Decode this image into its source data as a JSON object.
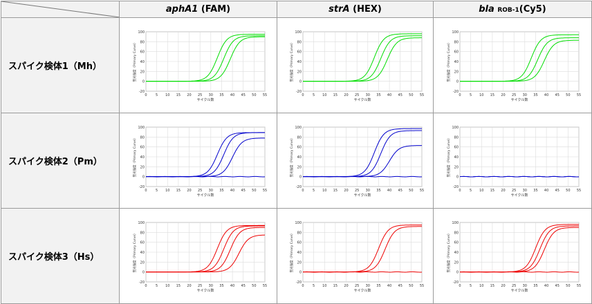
{
  "columns": [
    {
      "gene": "aphA1",
      "dye": " (FAM)",
      "sub": ""
    },
    {
      "gene": "strA",
      "dye": " (HEX)",
      "sub": ""
    },
    {
      "gene": "bla",
      "dye": "(Cy5)",
      "sub": "ROB-1"
    }
  ],
  "rows": [
    {
      "label": "スパイク検体1（Mh）",
      "color": "#00dd00"
    },
    {
      "label": "スパイク検体2（Pm）",
      "color": "#0000cc"
    },
    {
      "label": "スパイク検体3（Hs）",
      "color": "#ee0000"
    }
  ],
  "chart_common": {
    "xlabel": "サイクル数",
    "ylabel": "蛍光強度（Primary Curve）",
    "x_ticks": [
      "0",
      "5",
      "10",
      "15",
      "20",
      "25",
      "30",
      "35",
      "40",
      "45",
      "50",
      "55"
    ],
    "y_ticks": [
      "100",
      "80",
      "60",
      "40",
      "20",
      "0",
      "-20"
    ]
  },
  "chart_data": [
    {
      "type": "line",
      "row": 1,
      "col": 1,
      "xlim": [
        0,
        55
      ],
      "ylim": [
        -20,
        100
      ],
      "series": [
        {
          "midpoint": 33,
          "plateau": 95
        },
        {
          "midpoint": 36,
          "plateau": 92
        },
        {
          "midpoint": 39,
          "plateau": 90
        }
      ]
    },
    {
      "type": "line",
      "row": 1,
      "col": 2,
      "xlim": [
        0,
        55
      ],
      "ylim": [
        -20,
        100
      ],
      "series": [
        {
          "midpoint": 33,
          "plateau": 96
        },
        {
          "midpoint": 36,
          "plateau": 92
        },
        {
          "midpoint": 39,
          "plateau": 88
        }
      ]
    },
    {
      "type": "line",
      "row": 1,
      "col": 3,
      "xlim": [
        0,
        55
      ],
      "ylim": [
        -20,
        100
      ],
      "series": [
        {
          "midpoint": 33,
          "plateau": 94
        },
        {
          "midpoint": 36,
          "plateau": 88
        },
        {
          "midpoint": 39,
          "plateau": 83
        }
      ]
    },
    {
      "type": "line",
      "row": 2,
      "col": 1,
      "xlim": [
        0,
        55
      ],
      "ylim": [
        -20,
        100
      ],
      "series": [
        {
          "midpoint": 33,
          "plateau": 89
        },
        {
          "midpoint": 36,
          "plateau": 89
        },
        {
          "midpoint": 40,
          "plateau": 78
        },
        {
          "midpoint": null,
          "plateau": 0
        }
      ]
    },
    {
      "type": "line",
      "row": 2,
      "col": 2,
      "xlim": [
        0,
        55
      ],
      "ylim": [
        -20,
        100
      ],
      "series": [
        {
          "midpoint": 33,
          "plateau": 97
        },
        {
          "midpoint": 36,
          "plateau": 93
        },
        {
          "midpoint": 40,
          "plateau": 63
        },
        {
          "midpoint": null,
          "plateau": 0
        }
      ]
    },
    {
      "type": "line",
      "row": 2,
      "col": 3,
      "xlim": [
        0,
        55
      ],
      "ylim": [
        -20,
        100
      ],
      "series": [
        {
          "midpoint": null,
          "plateau": 0
        },
        {
          "midpoint": null,
          "plateau": 0
        }
      ]
    },
    {
      "type": "line",
      "row": 3,
      "col": 1,
      "xlim": [
        0,
        55
      ],
      "ylim": [
        -20,
        100
      ],
      "series": [
        {
          "midpoint": 33,
          "plateau": 94
        },
        {
          "midpoint": 36,
          "plateau": 93
        },
        {
          "midpoint": 39,
          "plateau": 90
        },
        {
          "midpoint": 43,
          "plateau": 75
        }
      ]
    },
    {
      "type": "line",
      "row": 3,
      "col": 2,
      "xlim": [
        0,
        55
      ],
      "ylim": [
        -20,
        100
      ],
      "series": [
        {
          "midpoint": 35,
          "plateau": 95
        },
        {
          "midpoint": 38,
          "plateau": 92
        },
        {
          "midpoint": null,
          "plateau": 0
        }
      ]
    },
    {
      "type": "line",
      "row": 3,
      "col": 3,
      "xlim": [
        0,
        55
      ],
      "ylim": [
        -20,
        100
      ],
      "series": [
        {
          "midpoint": 35,
          "plateau": 96
        },
        {
          "midpoint": 37,
          "plateau": 93
        },
        {
          "midpoint": 39,
          "plateau": 90
        },
        {
          "midpoint": null,
          "plateau": 0
        }
      ]
    }
  ]
}
